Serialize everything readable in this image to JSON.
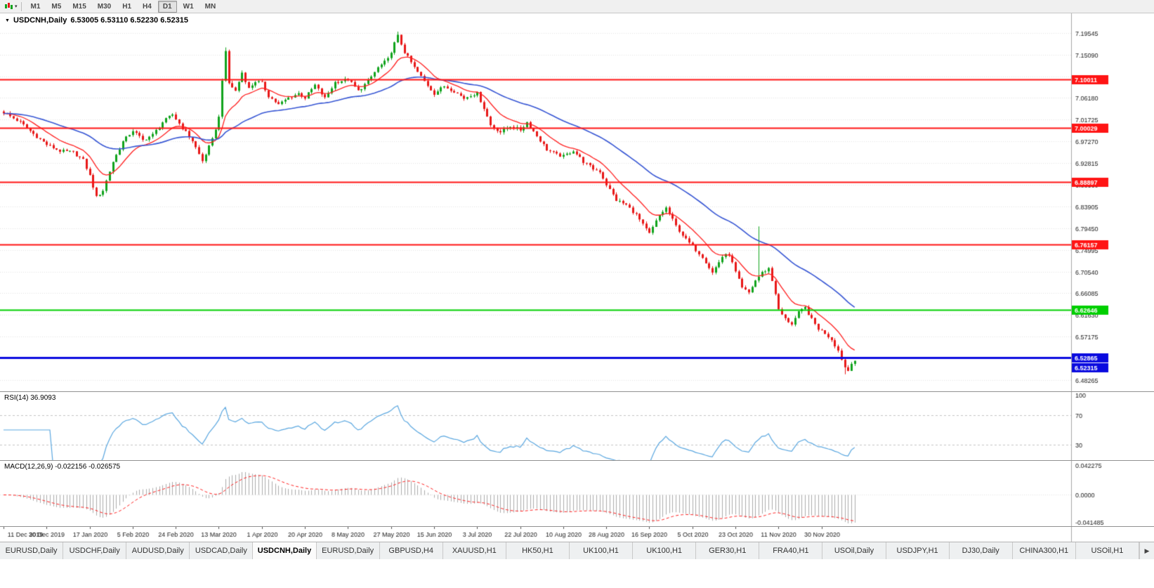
{
  "colors": {
    "up": "#10a31c",
    "down": "#e81717",
    "ma_fast": "#ff2020",
    "ma_slow": "#3756d4",
    "grid": "#e3e3e3",
    "level_red": "#ff1414",
    "level_green": "#00cf00",
    "level_blue": "#0a0adf",
    "rsi_line": "#5aa7e0",
    "rsi_grid": "#c4c4c4",
    "macd_hist": "#ababab",
    "macd_signal": "#ff2020",
    "axis_text": "#1a1a1a",
    "scale_sep": "#a7a7a7",
    "tag_text": "#ffffff",
    "tick": "#555555"
  },
  "icons": {
    "title_caret": "▼",
    "toolbar_caret": "▾",
    "tab_scroll": "▶"
  },
  "toolbar": {
    "timeframes": [
      {
        "label": "M1",
        "active": false
      },
      {
        "label": "M5",
        "active": false
      },
      {
        "label": "M15",
        "active": false
      },
      {
        "label": "M30",
        "active": false
      },
      {
        "label": "H1",
        "active": false
      },
      {
        "label": "H4",
        "active": false
      },
      {
        "label": "D1",
        "active": true
      },
      {
        "label": "W1",
        "active": false
      },
      {
        "label": "MN",
        "active": false
      }
    ]
  },
  "chart": {
    "symbol": "USDCNH,Daily",
    "ohlc": "6.53005 6.53110 6.52230 6.52315"
  },
  "price_scale": {
    "start": 6.48265,
    "step": 0.04455,
    "count": 17,
    "decimals": 5
  },
  "levels": [
    {
      "price": 7.10011,
      "color": "red",
      "label": "7.10011",
      "width": 2
    },
    {
      "price": 7.00029,
      "color": "red",
      "label": "7.00029",
      "width": 2
    },
    {
      "price": 6.88897,
      "color": "red",
      "label": "6.88897",
      "width": 2
    },
    {
      "price": 6.76157,
      "color": "red",
      "label": "6.76157",
      "width": 2
    },
    {
      "price": 6.62646,
      "color": "green",
      "label": "6.62646",
      "width": 2
    },
    {
      "price": 6.52865,
      "color": "blue",
      "label": "6.52865",
      "width": 3
    }
  ],
  "current_price": {
    "label": "6.52315",
    "price": 6.52315,
    "color": "blue"
  },
  "indicators": {
    "rsi": {
      "label": "RSI(14) 36.9093",
      "period": 14,
      "scale_labels": [
        "100",
        "70",
        "30"
      ],
      "scale_values": [
        100,
        70,
        30
      ]
    },
    "macd": {
      "label": "MACD(12,26,9) -0.022156 -0.026575",
      "fast": 12,
      "slow": 26,
      "signal": 9,
      "axis_labels": [
        "0.042275",
        "0.0000",
        "-0.041485"
      ],
      "axis_max": 0.042275
    }
  },
  "chart_data": {
    "type": "candlestick",
    "symbol": "USDCNH",
    "timeframe": "Daily",
    "bars": 258,
    "noise": 0.0032,
    "price_max": 7.2355,
    "price_min": 6.4595,
    "ma_fast_period": 12,
    "ma_slow_period": 45,
    "anchors": [
      [
        0,
        7.032
      ],
      [
        5,
        7.012
      ],
      [
        9,
        6.988
      ],
      [
        13,
        6.966
      ],
      [
        17,
        6.953
      ],
      [
        21,
        6.95
      ],
      [
        24,
        6.934
      ],
      [
        26,
        6.902
      ],
      [
        28,
        6.858
      ],
      [
        30,
        6.872
      ],
      [
        33,
        6.931
      ],
      [
        36,
        6.972
      ],
      [
        39,
        6.995
      ],
      [
        42,
        6.975
      ],
      [
        45,
        6.986
      ],
      [
        48,
        7.012
      ],
      [
        51,
        7.028
      ],
      [
        54,
        7.0
      ],
      [
        57,
        6.974
      ],
      [
        60,
        6.932
      ],
      [
        63,
        6.976
      ],
      [
        65,
        7.022
      ],
      [
        66,
        7.1
      ],
      [
        67,
        7.155
      ],
      [
        68,
        7.092
      ],
      [
        70,
        7.076
      ],
      [
        72,
        7.114
      ],
      [
        74,
        7.081
      ],
      [
        76,
        7.096
      ],
      [
        78,
        7.092
      ],
      [
        80,
        7.066
      ],
      [
        83,
        7.048
      ],
      [
        86,
        7.062
      ],
      [
        89,
        7.071
      ],
      [
        91,
        7.062
      ],
      [
        94,
        7.088
      ],
      [
        97,
        7.061
      ],
      [
        100,
        7.094
      ],
      [
        104,
        7.1
      ],
      [
        107,
        7.076
      ],
      [
        110,
        7.096
      ],
      [
        113,
        7.124
      ],
      [
        116,
        7.141
      ],
      [
        118,
        7.174
      ],
      [
        119,
        7.189
      ],
      [
        121,
        7.156
      ],
      [
        124,
        7.124
      ],
      [
        127,
        7.096
      ],
      [
        130,
        7.071
      ],
      [
        133,
        7.086
      ],
      [
        136,
        7.076
      ],
      [
        139,
        7.061
      ],
      [
        141,
        7.068
      ],
      [
        143,
        7.071
      ],
      [
        145,
        7.041
      ],
      [
        147,
        7.006
      ],
      [
        150,
        6.992
      ],
      [
        153,
        7.004
      ],
      [
        156,
        6.996
      ],
      [
        158,
        7.012
      ],
      [
        161,
        6.984
      ],
      [
        164,
        6.956
      ],
      [
        167,
        6.945
      ],
      [
        169,
        6.942
      ],
      [
        172,
        6.954
      ],
      [
        175,
        6.931
      ],
      [
        178,
        6.916
      ],
      [
        180,
        6.911
      ],
      [
        182,
        6.884
      ],
      [
        185,
        6.852
      ],
      [
        188,
        6.842
      ],
      [
        191,
        6.822
      ],
      [
        193,
        6.801
      ],
      [
        195,
        6.783
      ],
      [
        198,
        6.821
      ],
      [
        200,
        6.836
      ],
      [
        203,
        6.799
      ],
      [
        206,
        6.771
      ],
      [
        208,
        6.757
      ],
      [
        211,
        6.736
      ],
      [
        214,
        6.703
      ],
      [
        217,
        6.736
      ],
      [
        219,
        6.741
      ],
      [
        221,
        6.704
      ],
      [
        223,
        6.671
      ],
      [
        225,
        6.662
      ],
      [
        227,
        6.687
      ],
      [
        229,
        6.703
      ],
      [
        231,
        6.712
      ],
      [
        233,
        6.661
      ],
      [
        234,
        6.626
      ],
      [
        236,
        6.608
      ],
      [
        238,
        6.598
      ],
      [
        240,
        6.621
      ],
      [
        242,
        6.631
      ],
      [
        244,
        6.607
      ],
      [
        246,
        6.588
      ],
      [
        248,
        6.579
      ],
      [
        250,
        6.566
      ],
      [
        252,
        6.543
      ],
      [
        254,
        6.509
      ],
      [
        255,
        6.502
      ],
      [
        256,
        6.519
      ],
      [
        257,
        6.523
      ]
    ],
    "wicks": [
      {
        "i": 67,
        "high": 7.1655
      },
      {
        "i": 119,
        "high": 7.198
      },
      {
        "i": 228,
        "high": 6.798
      },
      {
        "i": 254,
        "low": 6.4945
      }
    ],
    "dates": [
      "11 Dec 2019",
      "30 Dec 2019",
      "17 Jan 2020",
      "5 Feb 2020",
      "24 Feb 2020",
      "13 Mar 2020",
      "1 Apr 2020",
      "20 Apr 2020",
      "8 May 2020",
      "27 May 2020",
      "15 Jun 2020",
      "3 Jul 2020",
      "22 Jul 2020",
      "10 Aug 2020",
      "28 Aug 2020",
      "16 Sep 2020",
      "5 Oct 2020",
      "23 Oct 2020",
      "11 Nov 2020",
      "30 Nov 2020"
    ],
    "date_step": 13
  },
  "tabs": [
    {
      "label": "EURUSD,Daily",
      "active": false
    },
    {
      "label": "USDCHF,Daily",
      "active": false
    },
    {
      "label": "AUDUSD,Daily",
      "active": false
    },
    {
      "label": "USDCAD,Daily",
      "active": false
    },
    {
      "label": "USDCNH,Daily",
      "active": true
    },
    {
      "label": "EURUSD,Daily",
      "active": false
    },
    {
      "label": "GBPUSD,H4",
      "active": false
    },
    {
      "label": "XAUUSD,H1",
      "active": false
    },
    {
      "label": "HK50,H1",
      "active": false
    },
    {
      "label": "UK100,H1",
      "active": false
    },
    {
      "label": "UK100,H1",
      "active": false
    },
    {
      "label": "GER30,H1",
      "active": false
    },
    {
      "label": "FRA40,H1",
      "active": false
    },
    {
      "label": "USOil,Daily",
      "active": false
    },
    {
      "label": "USDJPY,H1",
      "active": false
    },
    {
      "label": "DJ30,Daily",
      "active": false
    },
    {
      "label": "CHINA300,H1",
      "active": false
    },
    {
      "label": "USOil,H1",
      "active": false
    }
  ]
}
